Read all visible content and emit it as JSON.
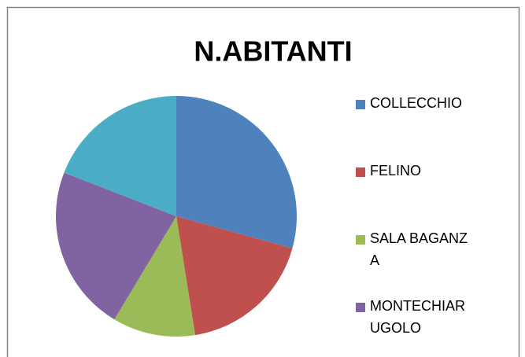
{
  "chart_data": {
    "type": "pie",
    "title": "N.ABITANTI",
    "categories": [
      "COLLECCHIO",
      "FELINO",
      "SALA BAGANZA",
      "MONTECHIARUGOLO",
      null
    ],
    "values": [
      29.3,
      18.2,
      11.1,
      22.3,
      19.1
    ],
    "colors": [
      "#4f81bd",
      "#c0504d",
      "#9bbb59",
      "#8064a2",
      "#4bacc6"
    ],
    "legend": "right"
  }
}
